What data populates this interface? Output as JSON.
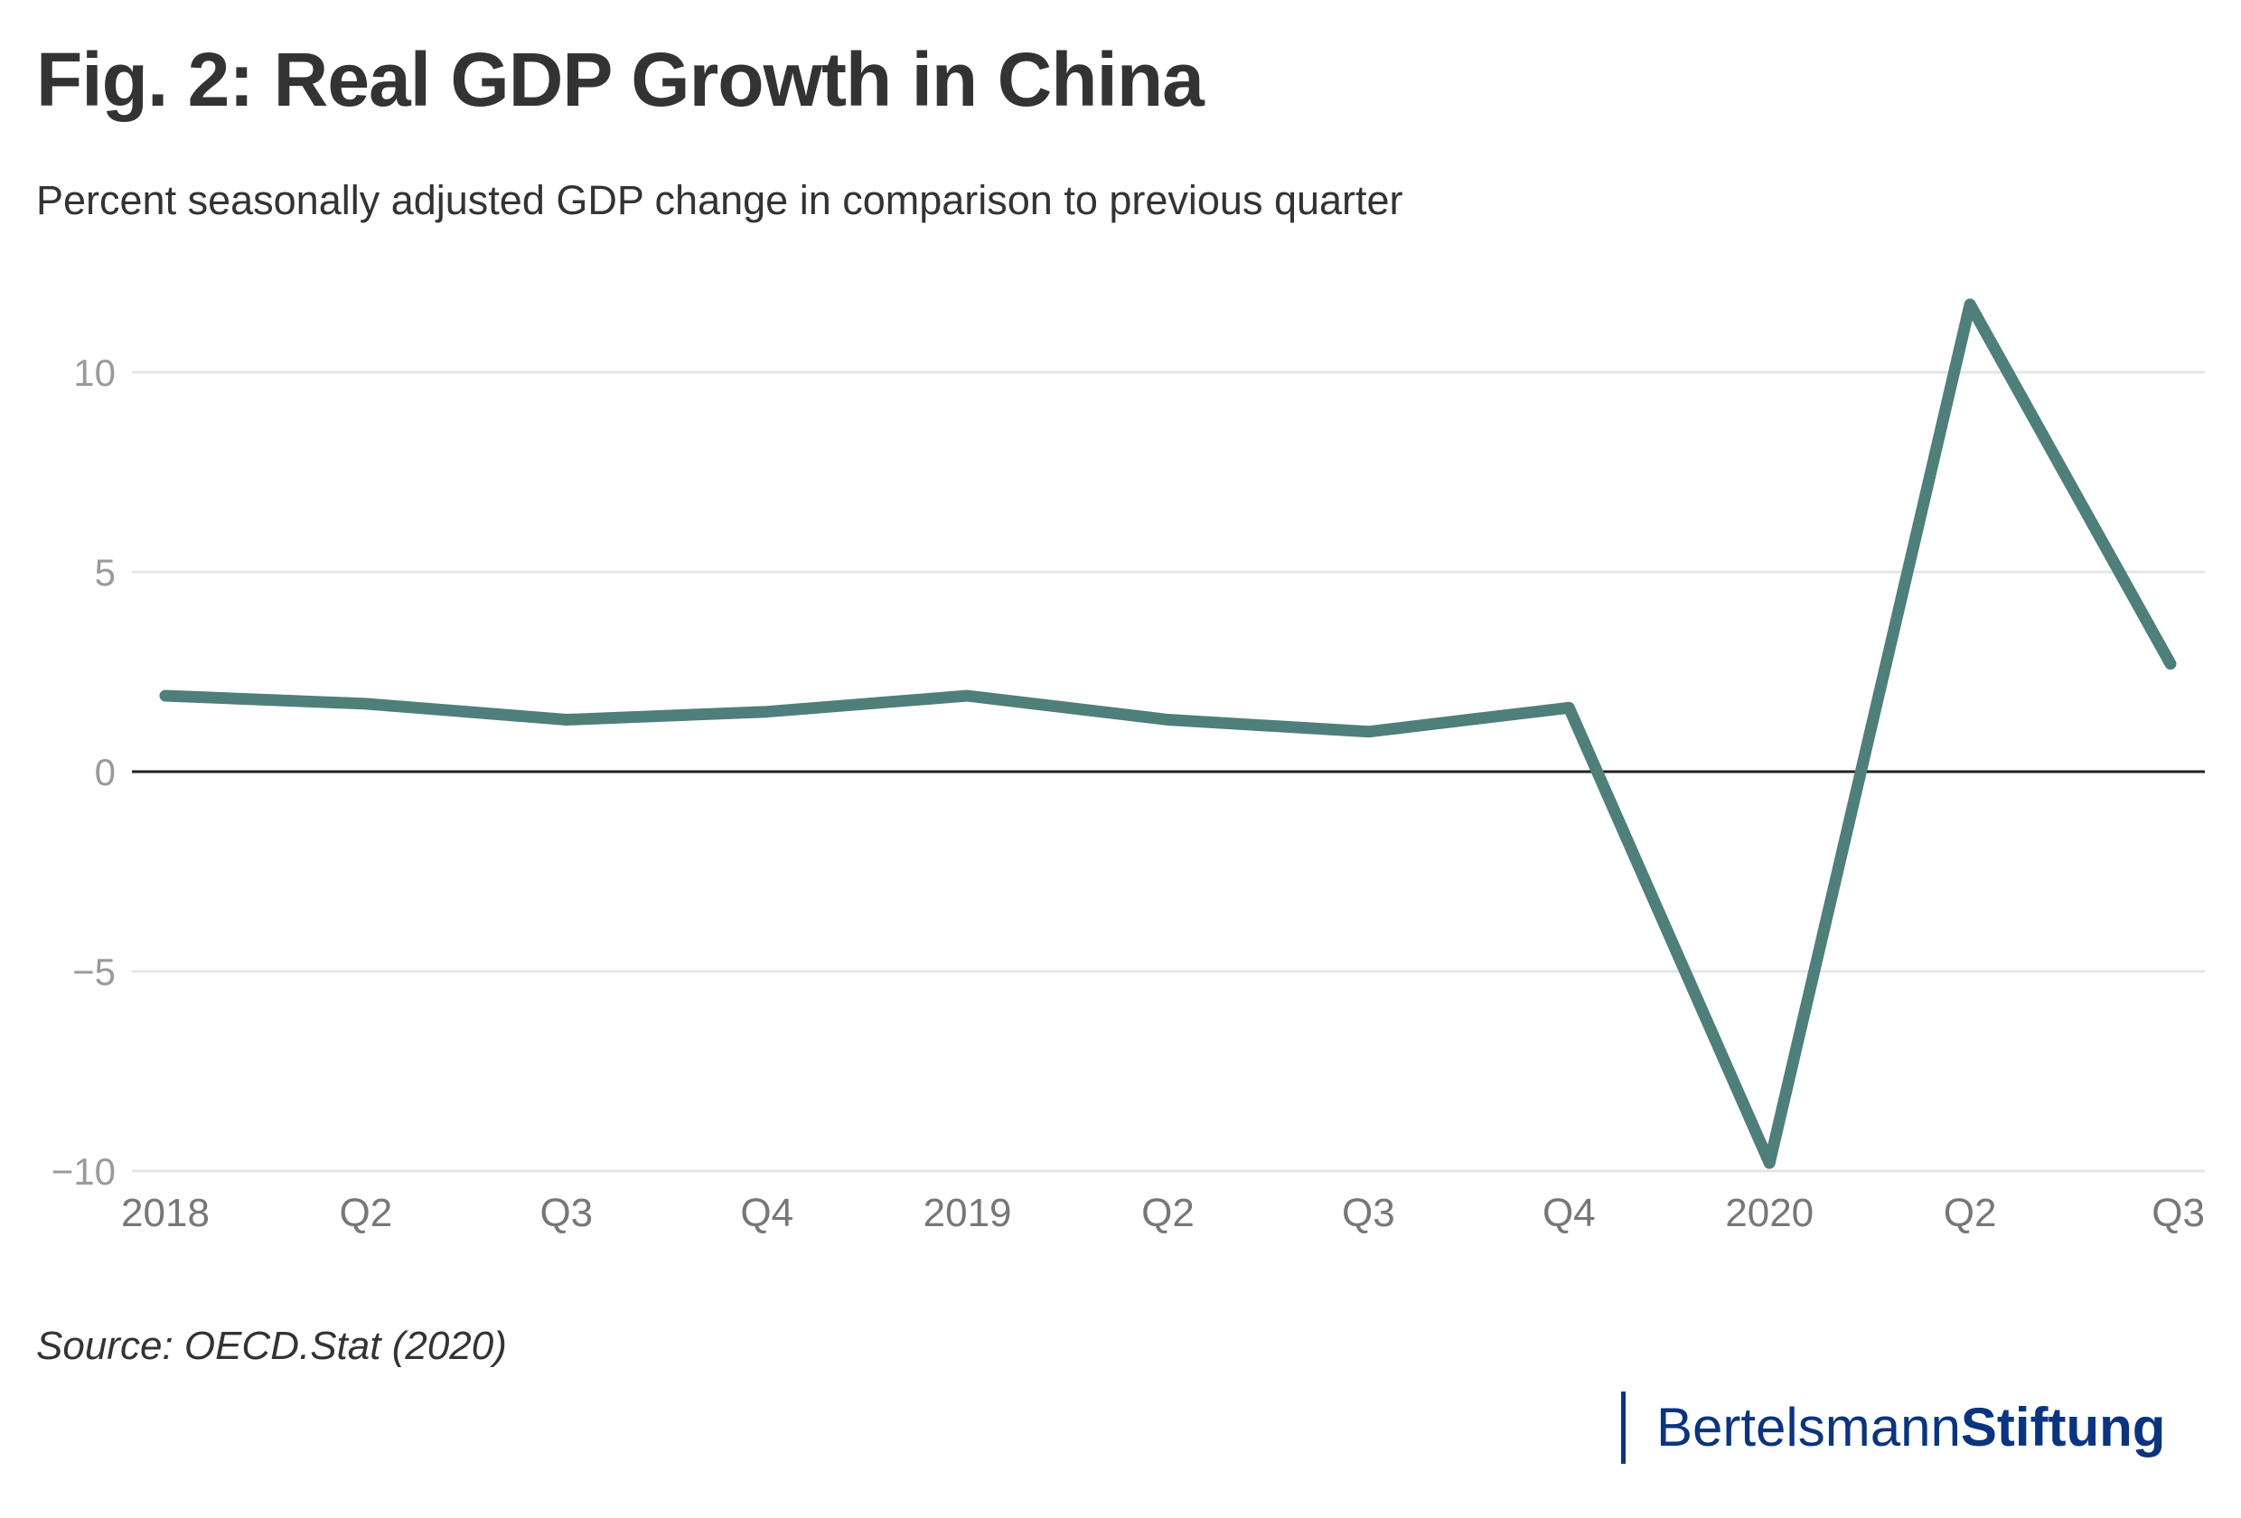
{
  "title": "Fig. 2: Real GDP Growth in China",
  "subtitle": "Percent seasonally adjusted GDP change in comparison to previous quarter",
  "source": "Source: OECD.Stat (2020)",
  "logo": {
    "part1": "Bertelsmann",
    "part2": "Stiftung",
    "color": "#0b3480"
  },
  "chart_data": {
    "type": "line",
    "title": "Fig. 2: Real GDP Growth in China",
    "subtitle": "Percent seasonally adjusted GDP change in comparison to previous quarter",
    "xlabel": "",
    "ylabel": "",
    "categories": [
      "2018",
      "Q2",
      "Q3",
      "Q4",
      "2019",
      "Q2",
      "Q3",
      "Q4",
      "2020",
      "Q2",
      "Q3"
    ],
    "series": [
      {
        "values": [
          1.9,
          1.7,
          1.3,
          1.5,
          1.9,
          1.3,
          1.0,
          1.6,
          -9.8,
          11.7,
          2.7
        ],
        "color": "#4e7f7b"
      }
    ],
    "yticks": [
      -10,
      -5,
      0,
      5,
      10
    ],
    "ytick_labels": [
      "−10",
      "−5",
      "0",
      "5",
      "10"
    ],
    "ylim": [
      -10,
      12
    ],
    "grid": true,
    "zero_line_color": "#222222",
    "legend": "none"
  }
}
